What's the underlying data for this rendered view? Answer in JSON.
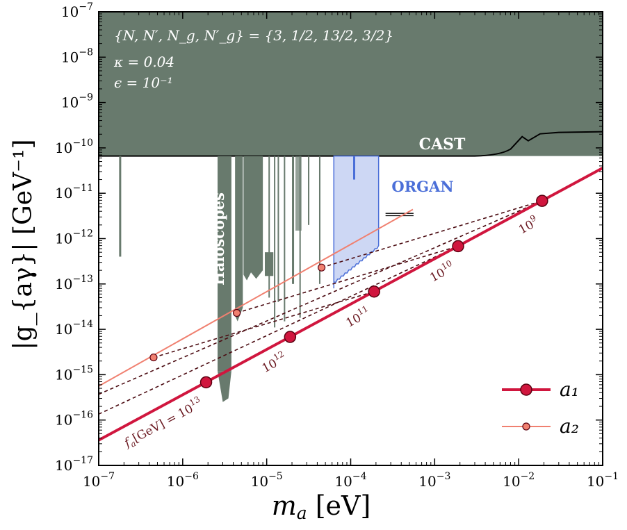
{
  "chart_data": {
    "type": "line",
    "xscale": "log",
    "yscale": "log",
    "xlim": [
      1e-07,
      0.1
    ],
    "ylim": [
      1e-17,
      1e-07
    ],
    "xlabel_main": "m",
    "xlabel_sub": "a",
    "xlabel_unit": " [eV]",
    "ylabel": "|g_{aγ}| [GeV⁻¹]",
    "xticks": [
      {
        "value": 1e-07,
        "base": "10",
        "exp": "−7"
      },
      {
        "value": 1e-06,
        "base": "10",
        "exp": "−6"
      },
      {
        "value": 1e-05,
        "base": "10",
        "exp": "−5"
      },
      {
        "value": 0.0001,
        "base": "10",
        "exp": "−4"
      },
      {
        "value": 0.001,
        "base": "10",
        "exp": "−3"
      },
      {
        "value": 0.01,
        "base": "10",
        "exp": "−2"
      },
      {
        "value": 0.1,
        "base": "10",
        "exp": "−1"
      }
    ],
    "yticks": [
      {
        "value": 1e-17,
        "base": "10",
        "exp": "−17"
      },
      {
        "value": 1e-16,
        "base": "10",
        "exp": "−16"
      },
      {
        "value": 1e-15,
        "base": "10",
        "exp": "−15"
      },
      {
        "value": 1e-14,
        "base": "10",
        "exp": "−14"
      },
      {
        "value": 1e-13,
        "base": "10",
        "exp": "−13"
      },
      {
        "value": 1e-12,
        "base": "10",
        "exp": "−12"
      },
      {
        "value": 1e-11,
        "base": "10",
        "exp": "−11"
      },
      {
        "value": 1e-10,
        "base": "10",
        "exp": "−10"
      },
      {
        "value": 1e-09,
        "base": "10",
        "exp": "−9"
      },
      {
        "value": 1e-08,
        "base": "10",
        "exp": "−8"
      },
      {
        "value": 1e-07,
        "base": "10",
        "exp": "−7"
      }
    ],
    "params": {
      "line1": "{N, N′, N_g, N′_g} = {3, 1/2, 13/2, 3/2}",
      "line2": "κ = 0.04",
      "line3": "ϵ = 10⁻¹"
    },
    "series": [
      {
        "name": "a₁",
        "color": "#d0163e",
        "line": {
          "x": [
            1e-07,
            0.1
          ],
          "y": [
            3.6e-17,
            3.6e-11
          ]
        },
        "points": {
          "x": [
            1.9e-06,
            1.9e-05,
            0.00019,
            0.0019,
            0.019
          ],
          "y": [
            6.8e-16,
            6.8e-15,
            6.8e-14,
            6.8e-13,
            6.8e-12
          ]
        }
      },
      {
        "name": "a₂",
        "color": "#f08070",
        "line": {
          "x": [
            1e-07,
            0.00055
          ],
          "y": [
            5.6e-16,
            4.4e-12
          ]
        },
        "points": {
          "x": [
            4.5e-07,
            4.4e-06,
            4.5e-05
          ],
          "y": [
            2.4e-15,
            2.3e-14,
            2.3e-13
          ]
        }
      }
    ],
    "connectors": [
      {
        "x": [
          1e-07,
          0.0019
        ],
        "y": [
          1.35e-16,
          6.8e-13
        ]
      },
      {
        "x": [
          1e-07,
          0.019
        ],
        "y": [
          3.7e-16,
          6.8e-12
        ]
      },
      {
        "x": [
          4.5e-07,
          0.00019
        ],
        "y": [
          2.4e-15,
          6.8e-14
        ]
      },
      {
        "x": [
          4.4e-06,
          0.0019
        ],
        "y": [
          2.3e-14,
          6.8e-13
        ]
      },
      {
        "x": [
          4.5e-05,
          0.019
        ],
        "y": [
          2.3e-13,
          6.8e-12
        ]
      }
    ],
    "fa_labels": [
      {
        "x": 1.9e-06,
        "y": 6.8e-16,
        "base": "f",
        "sub": "a",
        "mid": "[GeV] = 10",
        "exp": "13"
      },
      {
        "x": 1.9e-05,
        "y": 6.8e-15,
        "base": "10",
        "exp": "12"
      },
      {
        "x": 0.00019,
        "y": 6.8e-14,
        "base": "10",
        "exp": "11"
      },
      {
        "x": 0.0019,
        "y": 6.8e-13,
        "base": "10",
        "exp": "10"
      },
      {
        "x": 0.019,
        "y": 6.8e-12,
        "base": "10",
        "exp": "9"
      }
    ],
    "regions": {
      "cast": {
        "label": "CAST",
        "color": "#687a6d",
        "y_bottom": 6.6e-11
      },
      "haloscopes": {
        "label": "Haloscopes",
        "color": "#687a6d"
      },
      "organ": {
        "label": "ORGAN",
        "color": "#4b6fd8",
        "fill": "#cdd7f4",
        "x": [
          6.3e-05,
          0.000215
        ]
      }
    },
    "legend": {
      "position": "bottom-right"
    }
  }
}
